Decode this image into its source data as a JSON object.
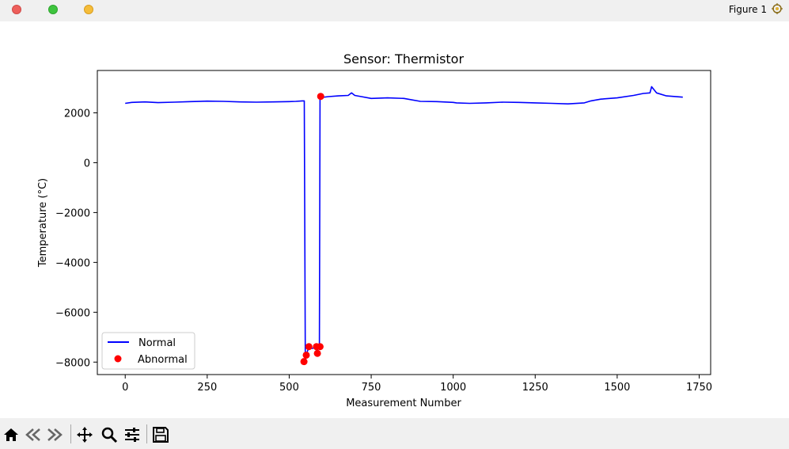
{
  "window": {
    "title": "Figure 1"
  },
  "toolbar": {
    "buttons": [
      "home-icon",
      "back-icon",
      "forward-icon",
      "pan-icon",
      "zoom-icon",
      "configure-icon",
      "save-icon"
    ]
  },
  "chart_data": {
    "type": "line",
    "title": "Sensor: Thermistor",
    "xlabel": "Measurement Number",
    "ylabel": "Temperature (°C)",
    "xlim": [
      -85,
      1785
    ],
    "ylim": [
      -8500,
      3700
    ],
    "xticks": [
      0,
      250,
      500,
      750,
      1000,
      1250,
      1500,
      1750
    ],
    "xtick_labels": [
      "0",
      "250",
      "500",
      "750",
      "1000",
      "1250",
      "1500",
      "1750"
    ],
    "yticks": [
      -8000,
      -6000,
      -4000,
      -2000,
      0,
      2000
    ],
    "ytick_labels": [
      "−8000",
      "−6000",
      "−4000",
      "−2000",
      "0",
      "2000"
    ],
    "grid": false,
    "legend_position": "lower-left",
    "series": [
      {
        "name": "Normal",
        "kind": "line",
        "color": "#0000ff",
        "x": [
          0,
          20,
          60,
          100,
          150,
          200,
          250,
          300,
          350,
          400,
          450,
          500,
          520,
          540,
          546,
          549,
          552,
          560,
          570,
          580,
          585,
          588,
          592,
          594,
          596,
          600,
          620,
          650,
          680,
          690,
          700,
          720,
          750,
          800,
          850,
          900,
          950,
          1000,
          1010,
          1050,
          1100,
          1150,
          1200,
          1250,
          1300,
          1350,
          1400,
          1420,
          1450,
          1500,
          1550,
          1580,
          1600,
          1605,
          1620,
          1650,
          1700
        ],
        "y": [
          2380,
          2420,
          2440,
          2410,
          2430,
          2450,
          2470,
          2460,
          2440,
          2430,
          2440,
          2450,
          2460,
          2480,
          2480,
          -7950,
          -7700,
          -7400,
          -7450,
          -7400,
          -7650,
          -7380,
          -7380,
          2600,
          2620,
          2620,
          2650,
          2680,
          2700,
          2800,
          2700,
          2650,
          2580,
          2600,
          2580,
          2460,
          2450,
          2420,
          2400,
          2380,
          2400,
          2430,
          2420,
          2400,
          2380,
          2360,
          2400,
          2480,
          2550,
          2600,
          2700,
          2780,
          2800,
          3050,
          2800,
          2680,
          2630
        ]
      },
      {
        "name": "Abnormal",
        "kind": "scatter",
        "color": "#ff0000",
        "x": [
          545,
          552,
          560,
          583,
          586,
          594,
          596
        ],
        "y": [
          -7980,
          -7720,
          -7380,
          -7380,
          -7650,
          -7380,
          2660
        ]
      }
    ]
  }
}
